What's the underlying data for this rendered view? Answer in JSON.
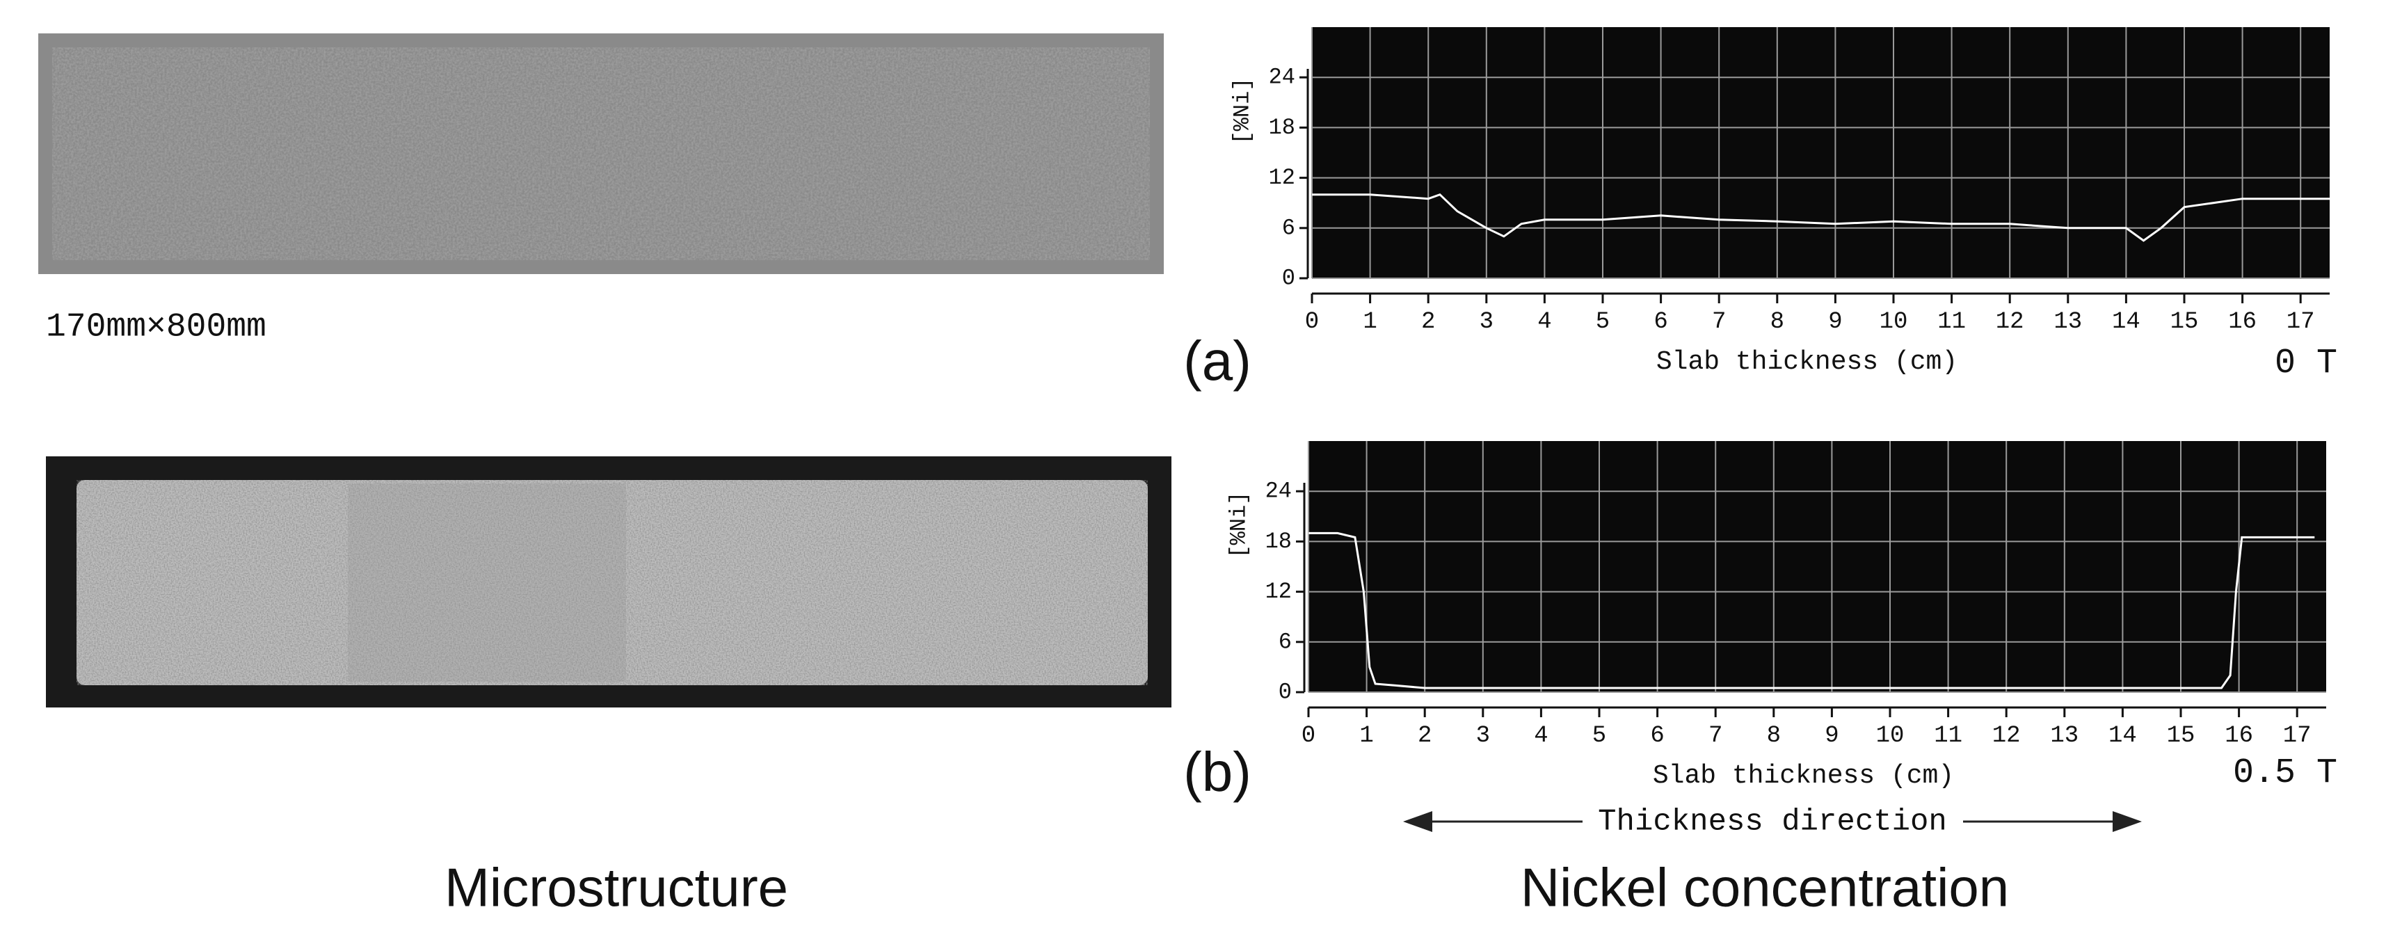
{
  "size_label": "170mm×800mm",
  "caption_left": "Microstructure",
  "caption_right": "Nickel concentration",
  "direction_label": "Thickness direction",
  "chart_data": [
    {
      "type": "line",
      "label": "(a)",
      "annotation": "0 T",
      "xlabel": "Slab thickness (cm)",
      "ylabel": "[%Ni]",
      "x": [
        0,
        1,
        2,
        2.2,
        2.5,
        3,
        3.3,
        3.6,
        4,
        5,
        6,
        7,
        8,
        9,
        10,
        11,
        12,
        13,
        14,
        14.3,
        14.6,
        15,
        16,
        17,
        17.5
      ],
      "values": [
        10,
        10,
        9.5,
        10,
        8,
        6,
        5,
        6.5,
        7,
        7,
        7.5,
        7,
        6.8,
        6.5,
        6.8,
        6.5,
        6.5,
        6,
        6,
        4.5,
        6,
        8.5,
        9.5,
        9.5,
        9.5
      ],
      "color": "#ffffff",
      "xlim": [
        0,
        17.5
      ],
      "xticks": [
        0,
        1,
        2,
        3,
        4,
        5,
        6,
        7,
        8,
        9,
        10,
        11,
        12,
        13,
        14,
        15,
        16,
        17
      ],
      "ylim": [
        0,
        30
      ],
      "yticks": [
        0,
        6,
        12,
        18,
        24
      ],
      "grid": true
    },
    {
      "type": "line",
      "label": "(b)",
      "annotation": "0.5 T",
      "xlabel": "Slab thickness (cm)",
      "ylabel": "[%Ni]",
      "x": [
        0,
        0.5,
        0.8,
        0.95,
        1.05,
        1.15,
        1.5,
        2,
        4,
        6,
        8,
        10,
        12,
        14,
        15,
        15.7,
        15.85,
        15.95,
        16.05,
        16.5,
        17.3
      ],
      "values": [
        19,
        19,
        18.5,
        12,
        3,
        1,
        0.8,
        0.5,
        0.5,
        0.5,
        0.5,
        0.5,
        0.5,
        0.5,
        0.5,
        0.5,
        2,
        12,
        18.5,
        18.5,
        18.5
      ],
      "color": "#ffffff",
      "xlim": [
        0,
        17.5
      ],
      "xticks": [
        0,
        1,
        2,
        3,
        4,
        5,
        6,
        7,
        8,
        9,
        10,
        11,
        12,
        13,
        14,
        15,
        16,
        17
      ],
      "ylim": [
        0,
        30
      ],
      "yticks": [
        0,
        6,
        12,
        18,
        24
      ],
      "grid": true
    }
  ]
}
